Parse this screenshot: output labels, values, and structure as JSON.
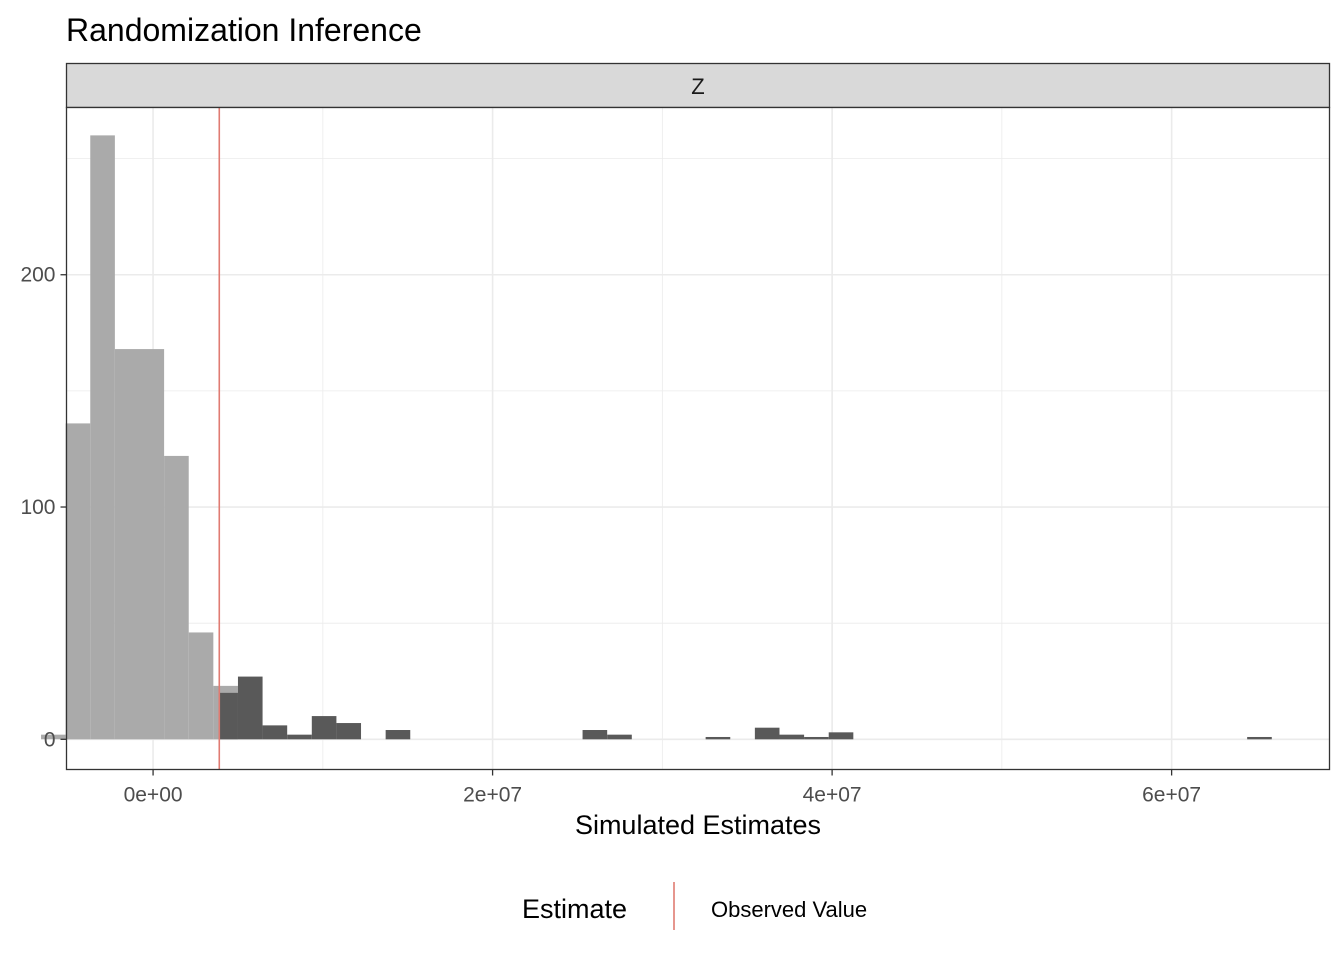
{
  "chart_data": {
    "type": "bar",
    "subtype": "histogram",
    "title": "Randomization Inference",
    "facet_label": "Z",
    "xlabel": "Simulated Estimates",
    "ylabel": "",
    "xlim": [
      -5100000,
      69300000
    ],
    "ylim": [
      -13,
      272
    ],
    "x_ticks": [
      0,
      20000000,
      40000000,
      60000000
    ],
    "x_tick_labels": [
      "0e+00",
      "2e+07",
      "4e+07",
      "6e+07"
    ],
    "y_ticks": [
      0,
      100,
      200
    ],
    "y_tick_labels": [
      "0",
      "100",
      "200"
    ],
    "grid": true,
    "observed_value": 3900000,
    "colors": {
      "light_bars": "#aaaaaa",
      "dark_bars": "#595959",
      "observed_line": "#e07b72",
      "strip_fill": "#d9d9d9",
      "grid": "#ebebeb"
    },
    "series": [
      {
        "name": "light",
        "bins": [
          {
            "x0": -6600000,
            "x1": -5150000,
            "count": 2
          },
          {
            "x0": -5150000,
            "x1": -3700000,
            "count": 136
          },
          {
            "x0": -3700000,
            "x1": -2250000,
            "count": 260
          },
          {
            "x0": -2250000,
            "x1": -800000,
            "count": 168
          },
          {
            "x0": -800000,
            "x1": 650000,
            "count": 168
          },
          {
            "x0": 650000,
            "x1": 2100000,
            "count": 122
          },
          {
            "x0": 2100000,
            "x1": 3550000,
            "count": 46
          },
          {
            "x0": 3550000,
            "x1": 3900000,
            "count": 23
          },
          {
            "x0": 3900000,
            "x1": 5000000,
            "count": 23
          }
        ]
      },
      {
        "name": "dark",
        "bins": [
          {
            "x0": 3900000,
            "x1": 5000000,
            "count": 20
          },
          {
            "x0": 5000000,
            "x1": 6450000,
            "count": 27
          },
          {
            "x0": 6450000,
            "x1": 7900000,
            "count": 6
          },
          {
            "x0": 7900000,
            "x1": 9350000,
            "count": 2
          },
          {
            "x0": 9350000,
            "x1": 10800000,
            "count": 10
          },
          {
            "x0": 10800000,
            "x1": 12250000,
            "count": 7
          },
          {
            "x0": 13700000,
            "x1": 15150000,
            "count": 4
          },
          {
            "x0": 25300000,
            "x1": 26750000,
            "count": 4
          },
          {
            "x0": 26750000,
            "x1": 28200000,
            "count": 2
          },
          {
            "x0": 32550000,
            "x1": 34000000,
            "count": 1
          },
          {
            "x0": 35450000,
            "x1": 36900000,
            "count": 5
          },
          {
            "x0": 36900000,
            "x1": 38350000,
            "count": 2
          },
          {
            "x0": 38350000,
            "x1": 39800000,
            "count": 1
          },
          {
            "x0": 39800000,
            "x1": 41250000,
            "count": 3
          },
          {
            "x0": 64450000,
            "x1": 65900000,
            "count": 1
          }
        ]
      }
    ],
    "legend": {
      "title": "Estimate",
      "position": "bottom",
      "items": [
        {
          "label": "Observed Value",
          "color": "#e07b72"
        }
      ]
    }
  }
}
